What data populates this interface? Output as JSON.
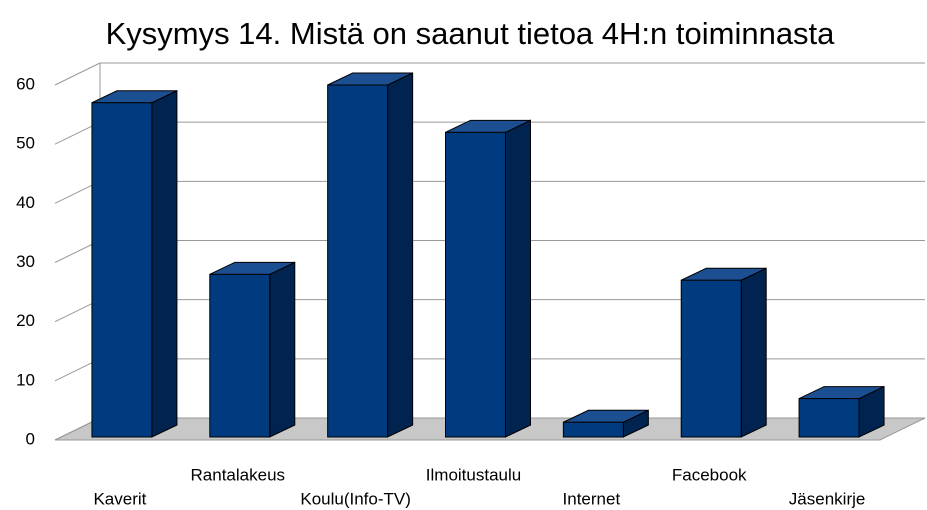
{
  "chart_data": {
    "type": "bar3d",
    "title": "Kysymys 14. Mistä on saanut tietoa 4H:n toiminnasta",
    "categories": [
      "Kaverit",
      "Rantalakeus",
      "Koulu(Info-TV)",
      "Ilmoitustaulu",
      "Internet",
      "Facebook",
      "Jäsenkirje"
    ],
    "values": [
      57,
      28,
      60,
      52,
      3,
      27,
      7
    ],
    "color": "#003b80",
    "ylim": [
      0,
      60
    ],
    "yticks": [
      0,
      10,
      20,
      30,
      40,
      50,
      60
    ],
    "grid": true
  }
}
